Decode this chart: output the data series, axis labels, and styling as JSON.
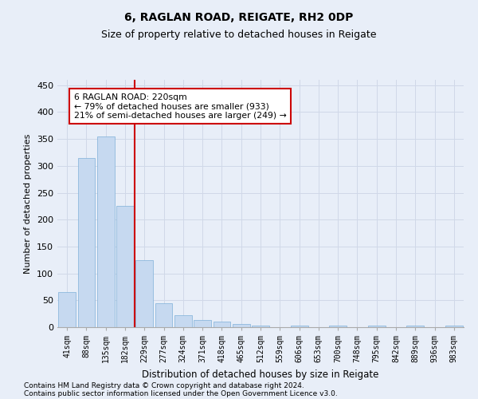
{
  "title1": "6, RAGLAN ROAD, REIGATE, RH2 0DP",
  "title2": "Size of property relative to detached houses in Reigate",
  "xlabel": "Distribution of detached houses by size in Reigate",
  "ylabel": "Number of detached properties",
  "bar_labels": [
    "41sqm",
    "88sqm",
    "135sqm",
    "182sqm",
    "229sqm",
    "277sqm",
    "324sqm",
    "371sqm",
    "418sqm",
    "465sqm",
    "512sqm",
    "559sqm",
    "606sqm",
    "653sqm",
    "700sqm",
    "748sqm",
    "795sqm",
    "842sqm",
    "889sqm",
    "936sqm",
    "983sqm"
  ],
  "bar_values": [
    65,
    315,
    355,
    225,
    125,
    45,
    22,
    14,
    10,
    6,
    3,
    0,
    3,
    0,
    3,
    0,
    3,
    0,
    3,
    0,
    3
  ],
  "bar_color": "#c6d9f0",
  "bar_edge_color": "#7fb0d8",
  "grid_color": "#d0d8e8",
  "background_color": "#e8eef8",
  "vline_x_idx": 3.5,
  "vline_color": "#cc0000",
  "annotation_text": "6 RAGLAN ROAD: 220sqm\n← 79% of detached houses are smaller (933)\n21% of semi-detached houses are larger (249) →",
  "annotation_box_color": "#ffffff",
  "annotation_box_edge": "#cc0000",
  "ylim": [
    0,
    460
  ],
  "yticks": [
    0,
    50,
    100,
    150,
    200,
    250,
    300,
    350,
    400,
    450
  ],
  "footer1": "Contains HM Land Registry data © Crown copyright and database right 2024.",
  "footer2": "Contains public sector information licensed under the Open Government Licence v3.0."
}
